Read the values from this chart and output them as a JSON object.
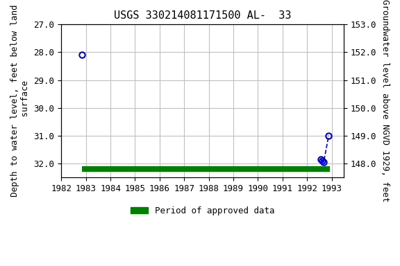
{
  "title": "USGS 330214081171500 AL-  33",
  "ylabel_left": "Depth to water level, feet below land\n surface",
  "ylabel_right": "Groundwater level above NGVD 1929, feet",
  "xlim": [
    1982,
    1993.5
  ],
  "ylim_left": [
    27.0,
    32.5
  ],
  "ylim_right": [
    153.0,
    147.5
  ],
  "xticks": [
    1982,
    1983,
    1984,
    1985,
    1986,
    1987,
    1988,
    1989,
    1990,
    1991,
    1992,
    1993
  ],
  "yticks_left": [
    27.0,
    28.0,
    29.0,
    30.0,
    31.0,
    32.0
  ],
  "yticks_right": [
    153.0,
    152.0,
    151.0,
    150.0,
    149.0,
    148.0
  ],
  "data_points_x": [
    1982.85,
    1992.55,
    1992.62,
    1992.68,
    1992.88
  ],
  "data_points_y": [
    28.1,
    31.85,
    31.9,
    31.95,
    31.0
  ],
  "green_bar_x_start": 1982.85,
  "green_bar_x_end": 1992.92,
  "green_bar_y": 32.2,
  "legend_label": "Period of approved data",
  "dot_color": "#0000cc",
  "green_color": "#008000",
  "bg_color": "#ffffff",
  "grid_color": "#c0c0c0",
  "title_fontsize": 11,
  "axis_label_fontsize": 9,
  "tick_fontsize": 9
}
